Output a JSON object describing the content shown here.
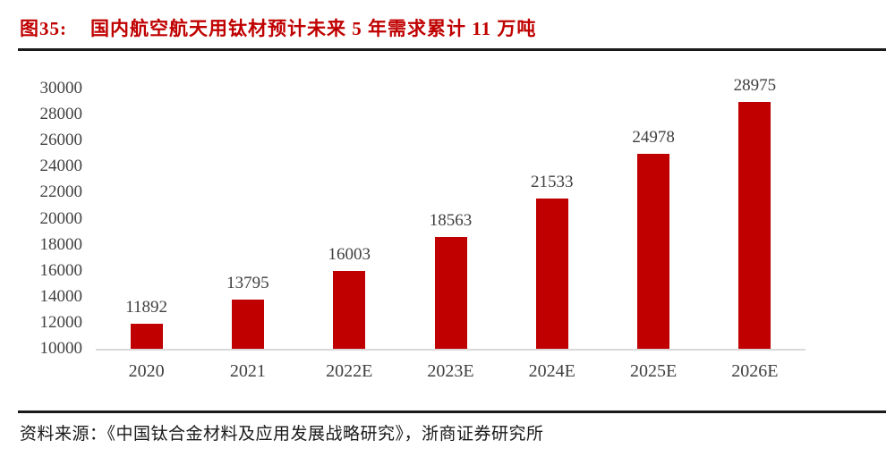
{
  "figure": {
    "label": "图35:",
    "title": "国内航空航天用钛材预计未来 5 年需求累计 11 万吨",
    "source": "资料来源：《中国钛合金材料及应用发展战略研究》，浙商证券研究所"
  },
  "colors": {
    "bar": "#c00000",
    "title": "#c00000",
    "divider": "#1a1a1a",
    "axis_label": "#404040",
    "data_label": "#3f3f3f",
    "baseline": "#d9d9d9",
    "source": "#1a1a1a"
  },
  "chart_data": {
    "type": "bar",
    "categories": [
      "2020",
      "2021",
      "2022E",
      "2023E",
      "2024E",
      "2025E",
      "2026E"
    ],
    "values": [
      11892,
      13795,
      16003,
      18563,
      21533,
      24978,
      28975
    ],
    "title": "国内航空航天用钛材预计未来 5 年需求累计 11 万吨",
    "xlabel": "",
    "ylabel": "",
    "ylim": [
      10000,
      30000
    ],
    "ytick_step": 2000,
    "grid": false,
    "legend": "none",
    "data_labels": true,
    "bar_color": "#c00000"
  }
}
